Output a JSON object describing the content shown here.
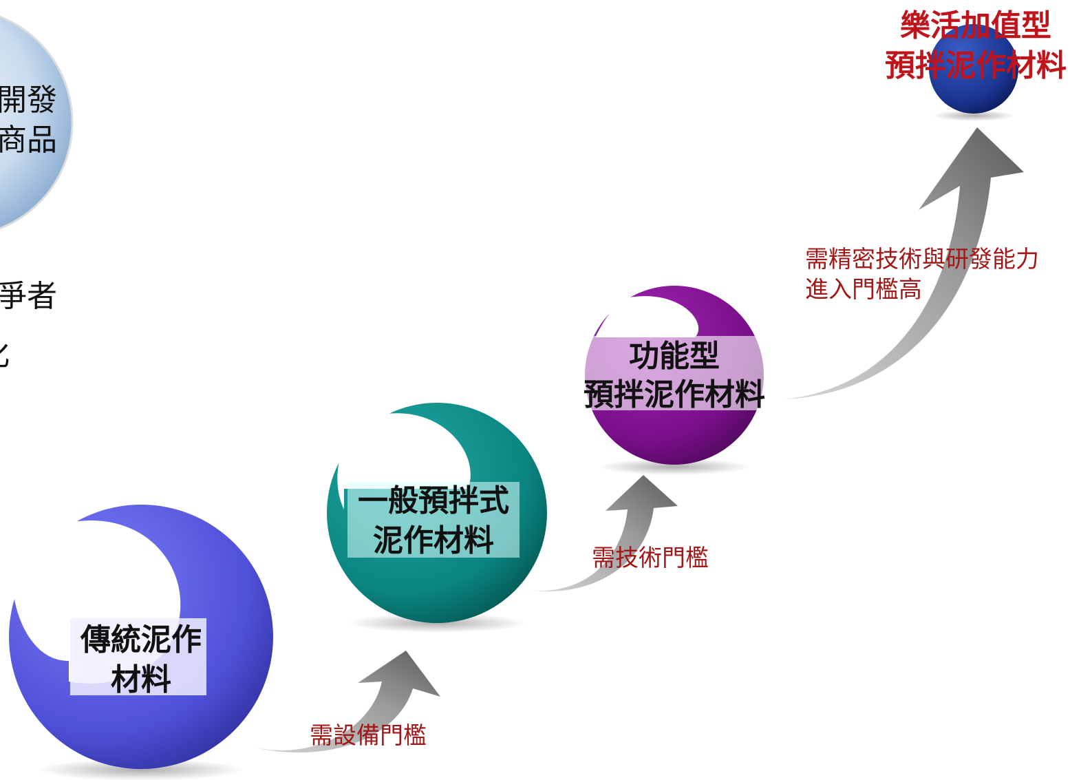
{
  "side_text": {
    "lines": [
      "開發",
      "商品",
      "爭者",
      "化"
    ]
  },
  "nodes": [
    {
      "lines": [
        "傳統泥作",
        "材料"
      ]
    },
    {
      "lines": [
        "一般預拌式",
        "泥作材料"
      ]
    },
    {
      "lines": [
        "功能型",
        "預拌泥作材料"
      ]
    },
    {
      "lines": [
        "樂活加值型",
        "預拌泥作材料"
      ]
    }
  ],
  "arrows": [
    {
      "lines": [
        "需設備門檻"
      ]
    },
    {
      "lines": [
        "需技術門檻"
      ]
    },
    {
      "lines": [
        "需精密技術與研發能力",
        "進入門檻高"
      ]
    }
  ]
}
